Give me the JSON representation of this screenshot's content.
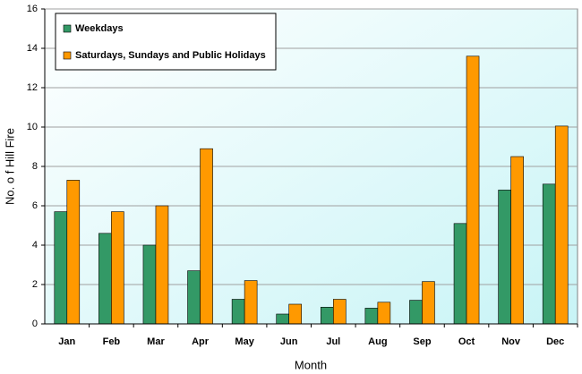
{
  "chart_data": {
    "type": "bar",
    "x_label": "Month",
    "y_label": "No. o f Hill Fire",
    "categories": [
      "Jan",
      "Feb",
      "Mar",
      "Apr",
      "May",
      "Jun",
      "Jul",
      "Aug",
      "Sep",
      "Oct",
      "Nov",
      "Dec"
    ],
    "series": [
      {
        "name": "Weekdays",
        "color": "#339966",
        "values": [
          5.7,
          4.6,
          4.0,
          2.7,
          1.25,
          0.5,
          0.85,
          0.8,
          1.2,
          5.1,
          6.8,
          7.1
        ]
      },
      {
        "name": "Saturdays, Sundays and Public Holidays",
        "color": "#ff9900",
        "values": [
          7.3,
          5.7,
          6.0,
          8.9,
          2.2,
          1.0,
          1.25,
          1.1,
          2.15,
          13.6,
          8.5,
          10.05
        ]
      }
    ],
    "ylim": [
      0,
      16
    ],
    "yticks": [
      0,
      2,
      4,
      6,
      8,
      10,
      12,
      14,
      16
    ],
    "grid": true,
    "legend": "top-left"
  }
}
